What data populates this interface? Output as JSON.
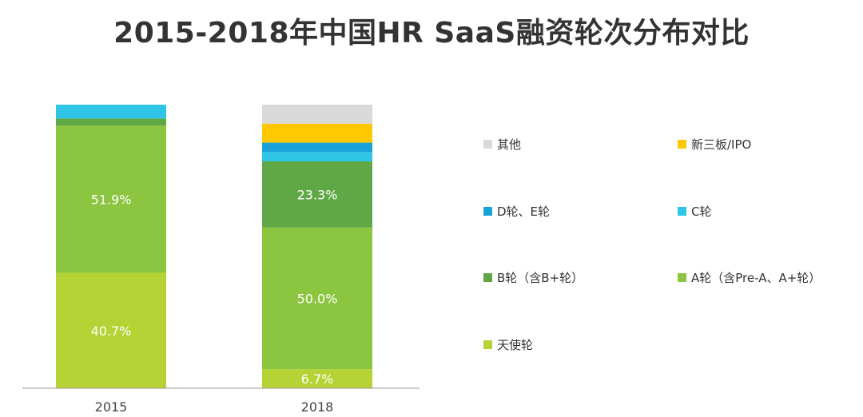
{
  "title": "2015-2018年中国HR SaaS融资轮次分布对比",
  "chart_data": {
    "type": "bar",
    "stacked": true,
    "normalized": true,
    "categories": [
      "2015",
      "2018"
    ],
    "series": [
      {
        "name": "天使轮",
        "color": "#b5d334",
        "values": [
          40.7,
          6.7
        ],
        "labels": [
          "40.7%",
          "6.7%"
        ]
      },
      {
        "name": "A轮（含Pre-A、A+轮）",
        "color": "#8cc540",
        "values": [
          51.9,
          50.0
        ],
        "labels": [
          "51.9%",
          "50.0%"
        ]
      },
      {
        "name": "B轮（含B+轮）",
        "color": "#5fa845",
        "values": [
          2.5,
          23.3
        ],
        "labels": [
          "",
          "23.3%"
        ]
      },
      {
        "name": "C轮",
        "color": "#2ec5e6",
        "values": [
          4.9,
          3.3
        ],
        "labels": [
          "",
          ""
        ]
      },
      {
        "name": "D轮、E轮",
        "color": "#1aa3d9",
        "values": [
          0,
          3.3
        ],
        "labels": [
          "",
          ""
        ]
      },
      {
        "name": "新三板/IPO",
        "color": "#ffc800",
        "values": [
          0,
          6.7
        ],
        "labels": [
          "",
          ""
        ]
      },
      {
        "name": "其他",
        "color": "#d9d9d9",
        "values": [
          0,
          6.7
        ],
        "labels": [
          "",
          ""
        ]
      }
    ],
    "ylim": [
      0,
      100
    ],
    "grid": false,
    "legend_placement": "right"
  },
  "legend_order": [
    "其他",
    "新三板/IPO",
    "D轮、E轮",
    "C轮",
    "B轮（含B+轮）",
    "A轮（含Pre-A、A+轮）",
    "天使轮"
  ]
}
